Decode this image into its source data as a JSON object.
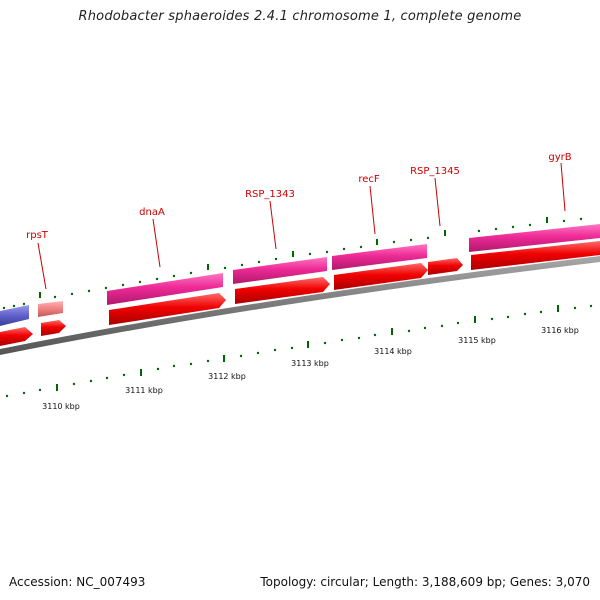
{
  "title": "Rhodobacter sphaeroides 2.4.1 chromosome 1, complete genome",
  "footer": {
    "accession": "Accession: NC_007493",
    "summary": "Topology: circular; Length: 3,188,609 bp; Genes: 3,070"
  },
  "genes": [
    {
      "name": "rpsT",
      "label": "rpsT"
    },
    {
      "name": "dnaA",
      "label": "dnaA"
    },
    {
      "name": "RSP_1343",
      "label": "RSP_1343"
    },
    {
      "name": "recF",
      "label": "recF"
    },
    {
      "name": "RSP_1345",
      "label": "RSP_1345"
    },
    {
      "name": "gyrB",
      "label": "gyrB"
    }
  ],
  "scale_labels": [
    "3110 kbp",
    "3111 kbp",
    "3112 kbp",
    "3113 kbp",
    "3114 kbp",
    "3115 kbp",
    "3116 kbp"
  ],
  "colors": {
    "cds": "#ff0000",
    "gene": "#ff3399",
    "rna": "#6666cc",
    "backbone": "#808080",
    "tick": "#006600",
    "label": "#cc0000"
  }
}
